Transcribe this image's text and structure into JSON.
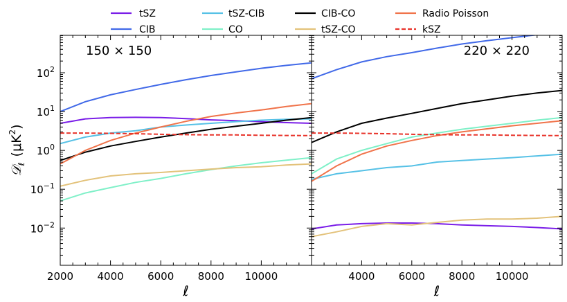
{
  "chart_data": [
    {
      "type": "line",
      "panel_label": "150 × 150",
      "xlabel": "ℓ",
      "ylabel": {
        "symbol": "𝒟",
        "sub": "ℓ",
        "unit": "(μK",
        "unit_sup": "2",
        "unit_close": ")"
      },
      "xlim": [
        2000,
        12000
      ],
      "ylim": [
        0.0011,
        920
      ],
      "yscale": "log",
      "xticks": [
        2000,
        4000,
        6000,
        8000,
        10000
      ],
      "yticks": [
        {
          "base": "10",
          "exp": "−2",
          "v": 0.01
        },
        {
          "base": "10",
          "exp": "−1",
          "v": 0.1
        },
        {
          "base": "10",
          "exp": "0",
          "v": 1
        },
        {
          "base": "10",
          "exp": "1",
          "v": 10
        },
        {
          "base": "10",
          "exp": "2",
          "v": 100
        }
      ],
      "grid": false,
      "x": [
        2000,
        3000,
        4000,
        5000,
        6000,
        7000,
        8000,
        9000,
        10000,
        11000,
        12000
      ],
      "series": [
        {
          "name": "tSZ",
          "values": [
            5,
            6.5,
            7,
            7.1,
            7,
            6.6,
            6.1,
            5.8,
            5.5,
            5.2,
            5
          ]
        },
        {
          "name": "CIB",
          "values": [
            10,
            18,
            27,
            37,
            50,
            66,
            85,
            105,
            130,
            155,
            180
          ]
        },
        {
          "name": "tSZ-CIB",
          "values": [
            1.5,
            2.2,
            2.8,
            3.2,
            4,
            4.5,
            5,
            5.5,
            6,
            6.3,
            6.5
          ]
        },
        {
          "name": "CO",
          "values": [
            0.05,
            0.08,
            0.11,
            0.15,
            0.19,
            0.25,
            0.32,
            0.4,
            0.48,
            0.56,
            0.65
          ]
        },
        {
          "name": "CIB-CO",
          "values": [
            0.55,
            0.9,
            1.3,
            1.7,
            2.2,
            2.8,
            3.5,
            4.2,
            5,
            6,
            7
          ]
        },
        {
          "name": "tSZ-CO",
          "values": [
            0.12,
            0.17,
            0.22,
            0.25,
            0.27,
            0.3,
            0.33,
            0.36,
            0.38,
            0.42,
            0.45
          ]
        },
        {
          "name": "Radio Poisson",
          "values": [
            0.45,
            1.0,
            1.8,
            2.8,
            4,
            5.6,
            7.5,
            9.2,
            11,
            13.5,
            16
          ]
        },
        {
          "name": "kSZ",
          "values": [
            2.8,
            2.8,
            2.75,
            2.7,
            2.6,
            2.55,
            2.5,
            2.5,
            2.45,
            2.42,
            2.4
          ]
        }
      ]
    },
    {
      "type": "line",
      "panel_label": "220 × 220",
      "xlabel": "ℓ",
      "xlim": [
        2000,
        12000
      ],
      "ylim": [
        0.0011,
        920
      ],
      "yscale": "log",
      "xticks": [
        4000,
        6000,
        8000,
        10000
      ],
      "grid": false,
      "x": [
        2000,
        3000,
        4000,
        5000,
        6000,
        7000,
        8000,
        9000,
        10000,
        11000,
        12000
      ],
      "series": [
        {
          "name": "tSZ",
          "values": [
            0.0095,
            0.012,
            0.013,
            0.0135,
            0.0135,
            0.013,
            0.012,
            0.0115,
            0.011,
            0.0103,
            0.0095
          ]
        },
        {
          "name": "CIB",
          "values": [
            70,
            120,
            190,
            260,
            330,
            430,
            550,
            670,
            800,
            950,
            1100
          ]
        },
        {
          "name": "tSZ-CIB",
          "values": [
            0.18,
            0.25,
            0.3,
            0.36,
            0.4,
            0.5,
            0.55,
            0.6,
            0.65,
            0.72,
            0.8
          ]
        },
        {
          "name": "CO",
          "values": [
            0.25,
            0.6,
            1.0,
            1.5,
            2.2,
            2.8,
            3.5,
            4.2,
            5,
            6,
            7
          ]
        },
        {
          "name": "CIB-CO",
          "values": [
            1.6,
            3,
            5,
            6.8,
            9,
            12,
            16,
            20,
            25,
            30,
            35
          ]
        },
        {
          "name": "tSZ-CO",
          "values": [
            0.006,
            0.008,
            0.011,
            0.013,
            0.012,
            0.014,
            0.016,
            0.017,
            0.017,
            0.018,
            0.02
          ]
        },
        {
          "name": "Radio Poisson",
          "values": [
            0.16,
            0.4,
            0.8,
            1.3,
            1.8,
            2.4,
            3,
            3.6,
            4.3,
            5,
            5.8
          ]
        },
        {
          "name": "kSZ",
          "values": [
            2.8,
            2.8,
            2.75,
            2.7,
            2.6,
            2.55,
            2.5,
            2.5,
            2.45,
            2.42,
            2.4
          ]
        }
      ]
    }
  ],
  "legend": {
    "placement": "top",
    "entries": [
      {
        "name": "tSZ",
        "color": "#7a1de8",
        "dashed": false
      },
      {
        "name": "CIB",
        "color": "#4169e8",
        "dashed": false
      },
      {
        "name": "tSZ-CIB",
        "color": "#56c1e6",
        "dashed": false
      },
      {
        "name": "CO",
        "color": "#7ff0c8",
        "dashed": false
      },
      {
        "name": "CIB-CO",
        "color": "#000000",
        "dashed": false
      },
      {
        "name": "tSZ-CO",
        "color": "#e3c27a",
        "dashed": false
      },
      {
        "name": "Radio Poisson",
        "color": "#f0734a",
        "dashed": false
      },
      {
        "name": "kSZ",
        "color": "#e8332a",
        "dashed": true
      }
    ]
  }
}
